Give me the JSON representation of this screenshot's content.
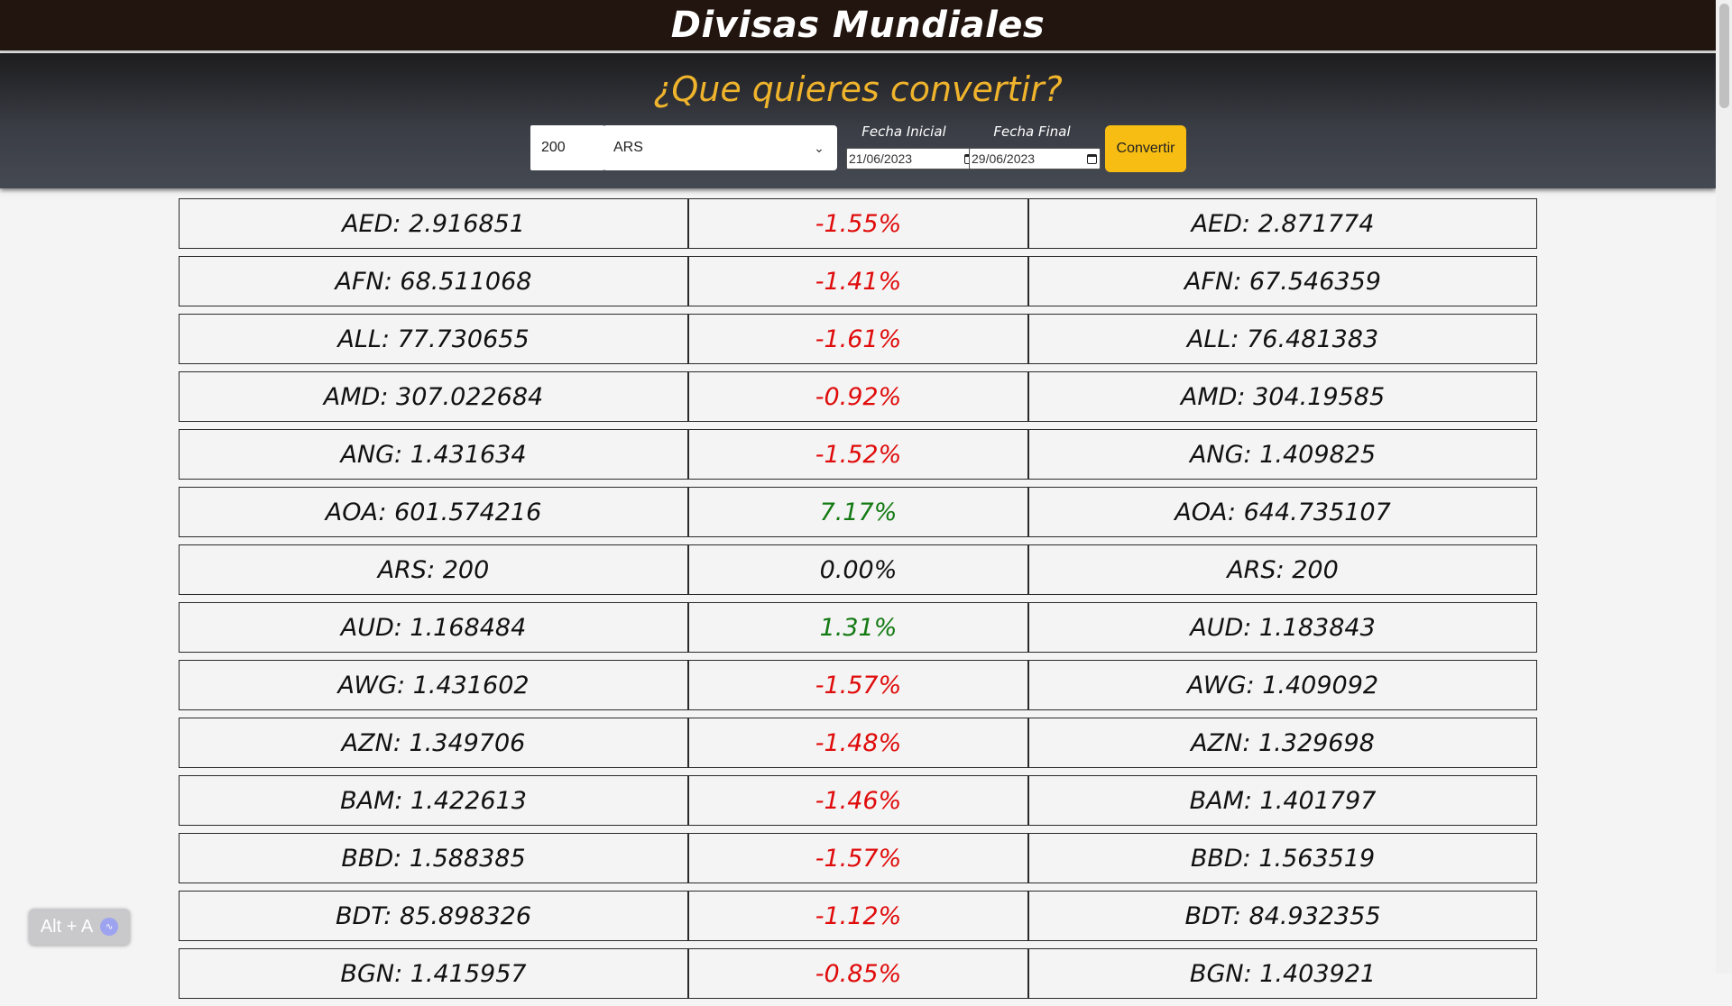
{
  "header": {
    "title": "Divisas Mundiales"
  },
  "converter": {
    "heading": "¿Que quieres convertir?",
    "amount": "200",
    "currency": "ARS",
    "start_label": "Fecha Inicial",
    "start_date": "21/06/2023",
    "end_label": "Fecha Final",
    "end_date": "29/06/2023",
    "button": "Convertir"
  },
  "rows": [
    {
      "start": "AED: 2.916851",
      "change": "-1.55%",
      "end": "AED: 2.871774",
      "trend": "neg"
    },
    {
      "start": "AFN: 68.511068",
      "change": "-1.41%",
      "end": "AFN: 67.546359",
      "trend": "neg"
    },
    {
      "start": "ALL: 77.730655",
      "change": "-1.61%",
      "end": "ALL: 76.481383",
      "trend": "neg"
    },
    {
      "start": "AMD: 307.022684",
      "change": "-0.92%",
      "end": "AMD: 304.19585",
      "trend": "neg"
    },
    {
      "start": "ANG: 1.431634",
      "change": "-1.52%",
      "end": "ANG: 1.409825",
      "trend": "neg"
    },
    {
      "start": "AOA: 601.574216",
      "change": "7.17%",
      "end": "AOA: 644.735107",
      "trend": "pos"
    },
    {
      "start": "ARS: 200",
      "change": "0.00%",
      "end": "ARS: 200",
      "trend": "zero"
    },
    {
      "start": "AUD: 1.168484",
      "change": "1.31%",
      "end": "AUD: 1.183843",
      "trend": "pos"
    },
    {
      "start": "AWG: 1.431602",
      "change": "-1.57%",
      "end": "AWG: 1.409092",
      "trend": "neg"
    },
    {
      "start": "AZN: 1.349706",
      "change": "-1.48%",
      "end": "AZN: 1.329698",
      "trend": "neg"
    },
    {
      "start": "BAM: 1.422613",
      "change": "-1.46%",
      "end": "BAM: 1.401797",
      "trend": "neg"
    },
    {
      "start": "BBD: 1.588385",
      "change": "-1.57%",
      "end": "BBD: 1.563519",
      "trend": "neg"
    },
    {
      "start": "BDT: 85.898326",
      "change": "-1.12%",
      "end": "BDT: 84.932355",
      "trend": "neg"
    },
    {
      "start": "BGN: 1.415957",
      "change": "-0.85%",
      "end": "BGN: 1.403921",
      "trend": "neg"
    }
  ],
  "shortcut": {
    "label": "Alt + A",
    "icon": "audio-wave-icon"
  },
  "colors": {
    "accent": "#f0b42c",
    "button": "#f7bd13",
    "negative": "#e00b0b",
    "positive": "#137a13",
    "header_bg": "#22150f"
  }
}
